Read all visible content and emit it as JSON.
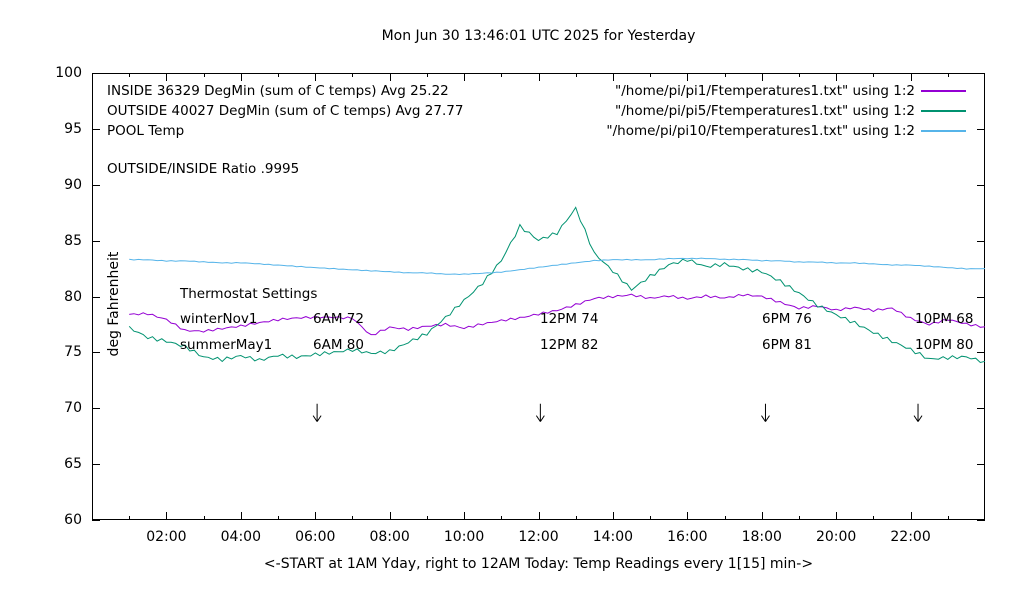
{
  "title": "Mon Jun 30 13:46:01 UTC 2025 for Yesterday",
  "ylabel": "deg Fahrenheit",
  "xlabel": "<-START at 1AM Yday, right to 12AM Today:  Temp Readings every 1[15] min->",
  "colors": {
    "inside": "#9400d3",
    "outside": "#009270",
    "pool": "#56b4e9",
    "axis": "#000000"
  },
  "legend": {
    "rows": [
      {
        "label": "INSIDE 36329 DegMin (sum of C temps) Avg 25.22",
        "file": "\"/home/pi/pi1/Ftemperatures1.txt\" using 1:2",
        "color": "#9400d3"
      },
      {
        "label": "OUTSIDE 40027 DegMin (sum of C temps) Avg 27.77",
        "file": "\"/home/pi/pi5/Ftemperatures1.txt\" using 1:2",
        "color": "#009270"
      },
      {
        "label": "POOL Temp",
        "file": "\"/home/pi/pi10/Ftemperatures1.txt\" using 1:2",
        "color": "#56b4e9"
      }
    ],
    "ratio_note": "OUTSIDE/INSIDE Ratio .9995"
  },
  "annotations": {
    "thermostat_title": "Thermostat Settings",
    "rows": [
      {
        "cells": [
          "winterNov1",
          "6AM 72",
          "12PM 74",
          "6PM 76",
          "10PM 68"
        ]
      },
      {
        "cells": [
          "summerMay1",
          "6AM 80",
          "12PM 82",
          "6PM 81",
          "10PM 80"
        ]
      }
    ]
  },
  "chart_data": {
    "type": "line",
    "title": "Mon Jun 30 13:46:01 UTC 2025 for Yesterday",
    "xlabel": "<-START at 1AM Yday, right to 12AM Today:  Temp Readings every 1[15] min->",
    "ylabel": "deg Fahrenheit",
    "xlim": [
      0,
      24
    ],
    "ylim": [
      60,
      100
    ],
    "yticks": [
      60,
      65,
      70,
      75,
      80,
      85,
      90,
      95,
      100
    ],
    "xtick_hours": [
      2,
      4,
      6,
      8,
      10,
      12,
      14,
      16,
      18,
      20,
      22
    ],
    "xtick_labels": [
      "02:00",
      "04:00",
      "06:00",
      "08:00",
      "10:00",
      "12:00",
      "14:00",
      "16:00",
      "18:00",
      "20:00",
      "22:00"
    ],
    "xminor_hours": [
      1,
      3,
      5,
      7,
      9,
      11,
      13,
      15,
      17,
      19,
      21,
      23
    ],
    "grid": false,
    "legend_position": "top-left-inside",
    "hours": [
      1,
      1.5,
      2,
      2.5,
      3,
      3.5,
      4,
      4.5,
      5,
      5.5,
      6,
      6.5,
      7,
      7.5,
      8,
      8.5,
      9,
      9.5,
      10,
      10.5,
      11,
      11.5,
      12,
      12.5,
      13,
      13.5,
      14,
      14.5,
      15,
      15.5,
      16,
      16.5,
      17,
      17.5,
      18,
      18.5,
      19,
      19.5,
      20,
      20.5,
      21,
      21.5,
      22,
      22.5,
      23,
      23.5,
      24
    ],
    "series": [
      {
        "name": "INSIDE",
        "color": "#9400d3",
        "wobble": 0.1,
        "values": [
          78.4,
          78.5,
          78.0,
          77.0,
          76.9,
          77.1,
          77.3,
          77.6,
          77.9,
          78.1,
          78.2,
          78.2,
          78.1,
          76.5,
          77.2,
          77.0,
          77.3,
          77.5,
          77.2,
          77.6,
          77.9,
          78.1,
          78.4,
          78.7,
          79.2,
          79.8,
          80.0,
          80.2,
          79.9,
          80.1,
          79.8,
          80.0,
          79.8,
          80.1,
          80.0,
          79.5,
          79.0,
          79.2,
          78.8,
          79.0,
          78.7,
          78.9,
          78.0,
          77.5,
          78.0,
          77.6,
          77.3
        ]
      },
      {
        "name": "OUTSIDE",
        "color": "#009270",
        "wobble": 0.16,
        "values": [
          77.2,
          76.4,
          76.1,
          75.6,
          74.6,
          74.3,
          74.6,
          74.2,
          74.7,
          74.6,
          74.9,
          75.1,
          75.3,
          74.9,
          75.0,
          75.8,
          76.6,
          78.1,
          79.7,
          81.3,
          83.3,
          86.3,
          85.0,
          85.6,
          87.8,
          83.8,
          82.3,
          80.7,
          81.9,
          82.9,
          83.3,
          82.6,
          82.8,
          82.4,
          82.2,
          81.4,
          80.4,
          79.3,
          78.4,
          77.6,
          76.7,
          75.9,
          75.2,
          74.4,
          74.6,
          74.7,
          74.2
        ]
      },
      {
        "name": "POOL",
        "color": "#56b4e9",
        "wobble": 0.03,
        "values": [
          83.3,
          83.3,
          83.2,
          83.2,
          83.1,
          83.0,
          83.0,
          82.9,
          82.8,
          82.7,
          82.6,
          82.5,
          82.4,
          82.3,
          82.2,
          82.1,
          82.1,
          82.0,
          82.0,
          82.1,
          82.2,
          82.4,
          82.6,
          82.8,
          83.0,
          83.2,
          83.3,
          83.3,
          83.3,
          83.4,
          83.4,
          83.4,
          83.3,
          83.3,
          83.2,
          83.2,
          83.1,
          83.1,
          83.0,
          83.0,
          82.9,
          82.8,
          82.8,
          82.7,
          82.6,
          82.5,
          82.5
        ]
      }
    ],
    "arrows": [
      {
        "hour": 6.05,
        "from_temp": 70.4,
        "to_temp": 68.8
      },
      {
        "hour": 12.05,
        "from_temp": 70.4,
        "to_temp": 68.8
      },
      {
        "hour": 18.1,
        "from_temp": 70.4,
        "to_temp": 68.8
      },
      {
        "hour": 22.2,
        "from_temp": 70.4,
        "to_temp": 68.8
      }
    ]
  }
}
